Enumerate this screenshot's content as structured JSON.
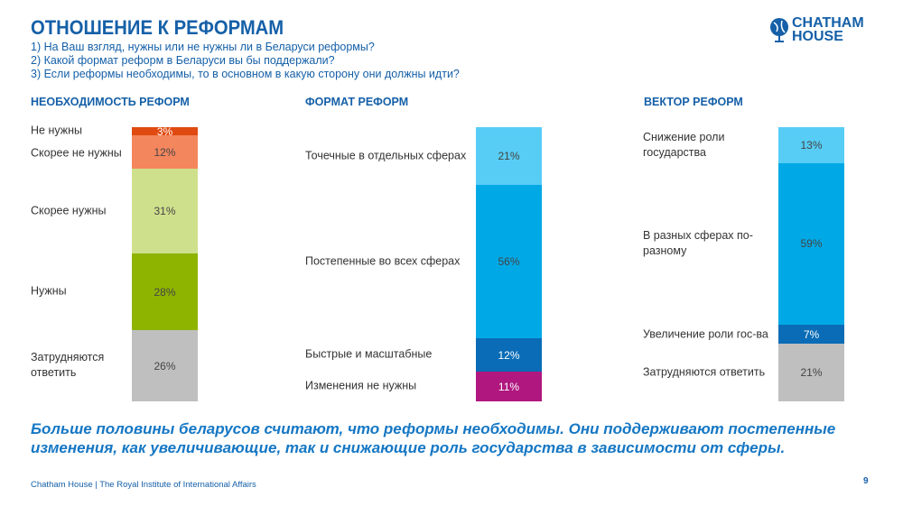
{
  "header": {
    "title": "ОТНОШЕНИЕ К РЕФОРМАМ",
    "questions": [
      "1) На Ваш взгляд, нужны или не нужны ли в Беларуси реформы?",
      "2) Какой формат реформ в Беларуси вы бы поддержали?",
      "3) Если реформы необходимы, то в основном в какую сторону они должны идти?"
    ],
    "logo": "CHATHAM HOUSE"
  },
  "chart_data": [
    {
      "type": "bar",
      "stacked": true,
      "title": "НЕОБХОДИМОСТЬ РЕФОРМ",
      "categories": [
        "Не нужны",
        "Скорее не нужны",
        "Скорее нужны",
        "Нужны",
        "Затрудняются ответить"
      ],
      "values": [
        3,
        12,
        31,
        28,
        26
      ],
      "labels": [
        "3%",
        "12%",
        "31%",
        "28%",
        "26%"
      ],
      "colors": [
        "#e04a10",
        "#f4865e",
        "#cfe08c",
        "#8fb400",
        "#bfbfbf"
      ]
    },
    {
      "type": "bar",
      "stacked": true,
      "title": "ФОРМАТ РЕФОРМ",
      "categories": [
        "Точечные в отдельных сферах",
        "Постепенные во всех сферах",
        "Быстрые и масштабные",
        "Изменения не нужны"
      ],
      "values": [
        21,
        56,
        12,
        11
      ],
      "labels": [
        "21%",
        "56%",
        "12%",
        "11%"
      ],
      "colors": [
        "#57cdf5",
        "#00a9e6",
        "#0a6cb6",
        "#b0177f"
      ]
    },
    {
      "type": "bar",
      "stacked": true,
      "title": "ВЕКТОР РЕФОРМ",
      "categories": [
        "Снижение роли государства",
        "В разных сферах по-разному",
        "Увеличение роли гос-ва",
        "Затрудняются ответить"
      ],
      "values": [
        13,
        59,
        7,
        21
      ],
      "labels": [
        "13%",
        "59%",
        "7%",
        "21%"
      ],
      "colors": [
        "#57cdf5",
        "#00a9e6",
        "#0a6cb6",
        "#bfbfbf"
      ]
    }
  ],
  "conclusion": "Больше половины беларусов считают, что реформы необходимы. Они поддерживают постепенные изменения, как увеличивающие, так и снижающие роль государства в зависимости от сферы.",
  "footer": "Chatham House  |  The Royal Institute of International Affairs",
  "page_number": "9"
}
